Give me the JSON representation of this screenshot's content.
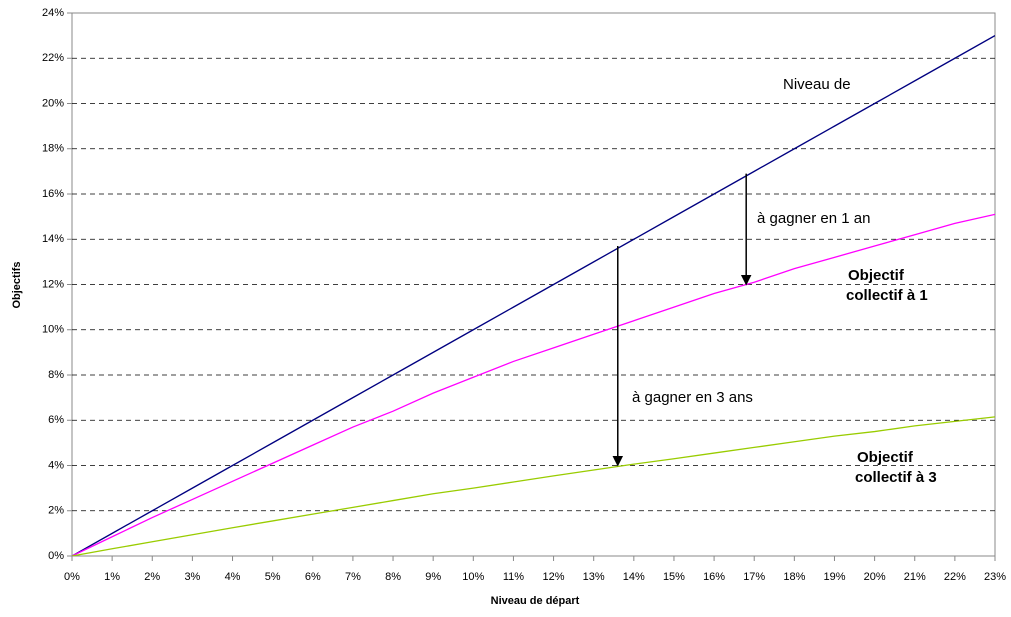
{
  "chart_data": {
    "type": "line",
    "x_label": "Niveau de départ",
    "y_label": "Objectifs",
    "x": [
      0,
      1,
      2,
      3,
      4,
      5,
      6,
      7,
      8,
      9,
      10,
      11,
      12,
      13,
      14,
      15,
      16,
      17,
      18,
      19,
      20,
      21,
      22,
      23
    ],
    "series": [
      {
        "name": "Niveau de",
        "color": "#000080",
        "values": [
          0,
          1,
          2,
          3,
          4,
          5,
          6,
          7,
          8,
          9,
          10,
          11,
          12,
          13,
          14,
          15,
          16,
          17,
          18,
          19,
          20,
          21,
          22,
          23
        ]
      },
      {
        "name": "Objectif collectif à 1",
        "color": "#ff00ff",
        "values": [
          0,
          0.85,
          1.7,
          2.5,
          3.3,
          4.1,
          4.9,
          5.7,
          6.4,
          7.2,
          7.9,
          8.6,
          9.2,
          9.8,
          10.4,
          11.0,
          11.6,
          12.1,
          12.7,
          13.2,
          13.7,
          14.2,
          14.7,
          15.1
        ]
      },
      {
        "name": "Objectif collectif à 3",
        "color": "#99cc00",
        "values": [
          0,
          0.32,
          0.63,
          0.94,
          1.25,
          1.55,
          1.85,
          2.15,
          2.45,
          2.75,
          3.0,
          3.27,
          3.54,
          3.8,
          4.06,
          4.3,
          4.55,
          4.8,
          5.05,
          5.3,
          5.5,
          5.75,
          5.95,
          6.15
        ]
      }
    ],
    "arrows": [
      {
        "label": "à gagner en 1 an",
        "x": 16.8,
        "from": 16.9,
        "to": 12.0
      },
      {
        "label": "à gagner en 3 ans",
        "x": 13.6,
        "from": 13.7,
        "to": 4.0
      }
    ],
    "xlim": [
      0,
      23
    ],
    "ylim": [
      0,
      24
    ],
    "xticks": [
      {
        "value": 0,
        "label": "0%"
      },
      {
        "value": 1,
        "label": "1%"
      },
      {
        "value": 2,
        "label": "2%"
      },
      {
        "value": 3,
        "label": "3%"
      },
      {
        "value": 4,
        "label": "4%"
      },
      {
        "value": 5,
        "label": "5%"
      },
      {
        "value": 6,
        "label": "6%"
      },
      {
        "value": 7,
        "label": "7%"
      },
      {
        "value": 8,
        "label": "8%"
      },
      {
        "value": 9,
        "label": "9%"
      },
      {
        "value": 10,
        "label": "10%"
      },
      {
        "value": 11,
        "label": "11%"
      },
      {
        "value": 12,
        "label": "12%"
      },
      {
        "value": 13,
        "label": "13%"
      },
      {
        "value": 14,
        "label": "14%"
      },
      {
        "value": 15,
        "label": "15%"
      },
      {
        "value": 16,
        "label": "16%"
      },
      {
        "value": 17,
        "label": "17%"
      },
      {
        "value": 18,
        "label": "18%"
      },
      {
        "value": 19,
        "label": "19%"
      },
      {
        "value": 20,
        "label": "20%"
      },
      {
        "value": 21,
        "label": "21%"
      },
      {
        "value": 22,
        "label": "22%"
      },
      {
        "value": 23,
        "label": "23%"
      }
    ],
    "yticks": [
      {
        "value": 0,
        "label": "0%"
      },
      {
        "value": 2,
        "label": "2%"
      },
      {
        "value": 4,
        "label": "4%"
      },
      {
        "value": 6,
        "label": "6%"
      },
      {
        "value": 8,
        "label": "8%"
      },
      {
        "value": 10,
        "label": "10%"
      },
      {
        "value": 12,
        "label": "12%"
      },
      {
        "value": 14,
        "label": "14%"
      },
      {
        "value": 16,
        "label": "16%"
      },
      {
        "value": 18,
        "label": "18%"
      },
      {
        "value": 20,
        "label": "20%"
      },
      {
        "value": 22,
        "label": "22%"
      },
      {
        "value": 24,
        "label": "24%"
      }
    ],
    "grid": true
  }
}
